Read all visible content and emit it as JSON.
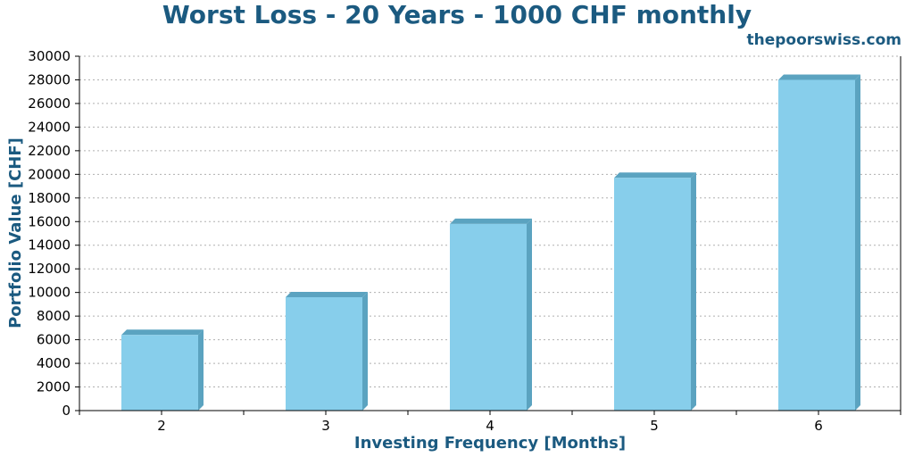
{
  "chart_data": {
    "type": "bar",
    "title": "Worst Loss - 20 Years - 1000 CHF monthly",
    "watermark": "thepoorswiss.com",
    "xlabel": "Investing Frequency [Months]",
    "ylabel": "Portfolio Value [CHF]",
    "categories": [
      "2",
      "3",
      "4",
      "5",
      "6"
    ],
    "values": [
      6400,
      9600,
      15800,
      19700,
      28000
    ],
    "ylim": [
      0,
      30000
    ],
    "yticks": [
      0,
      2000,
      4000,
      6000,
      8000,
      10000,
      12000,
      14000,
      16000,
      18000,
      20000,
      22000,
      24000,
      26000,
      28000,
      30000
    ],
    "grid": true,
    "colors": {
      "bar_face": "#87ceeb",
      "bar_side": "#5ba3c0",
      "title": "#1b5a80",
      "grid": "#b0b0b0"
    }
  }
}
